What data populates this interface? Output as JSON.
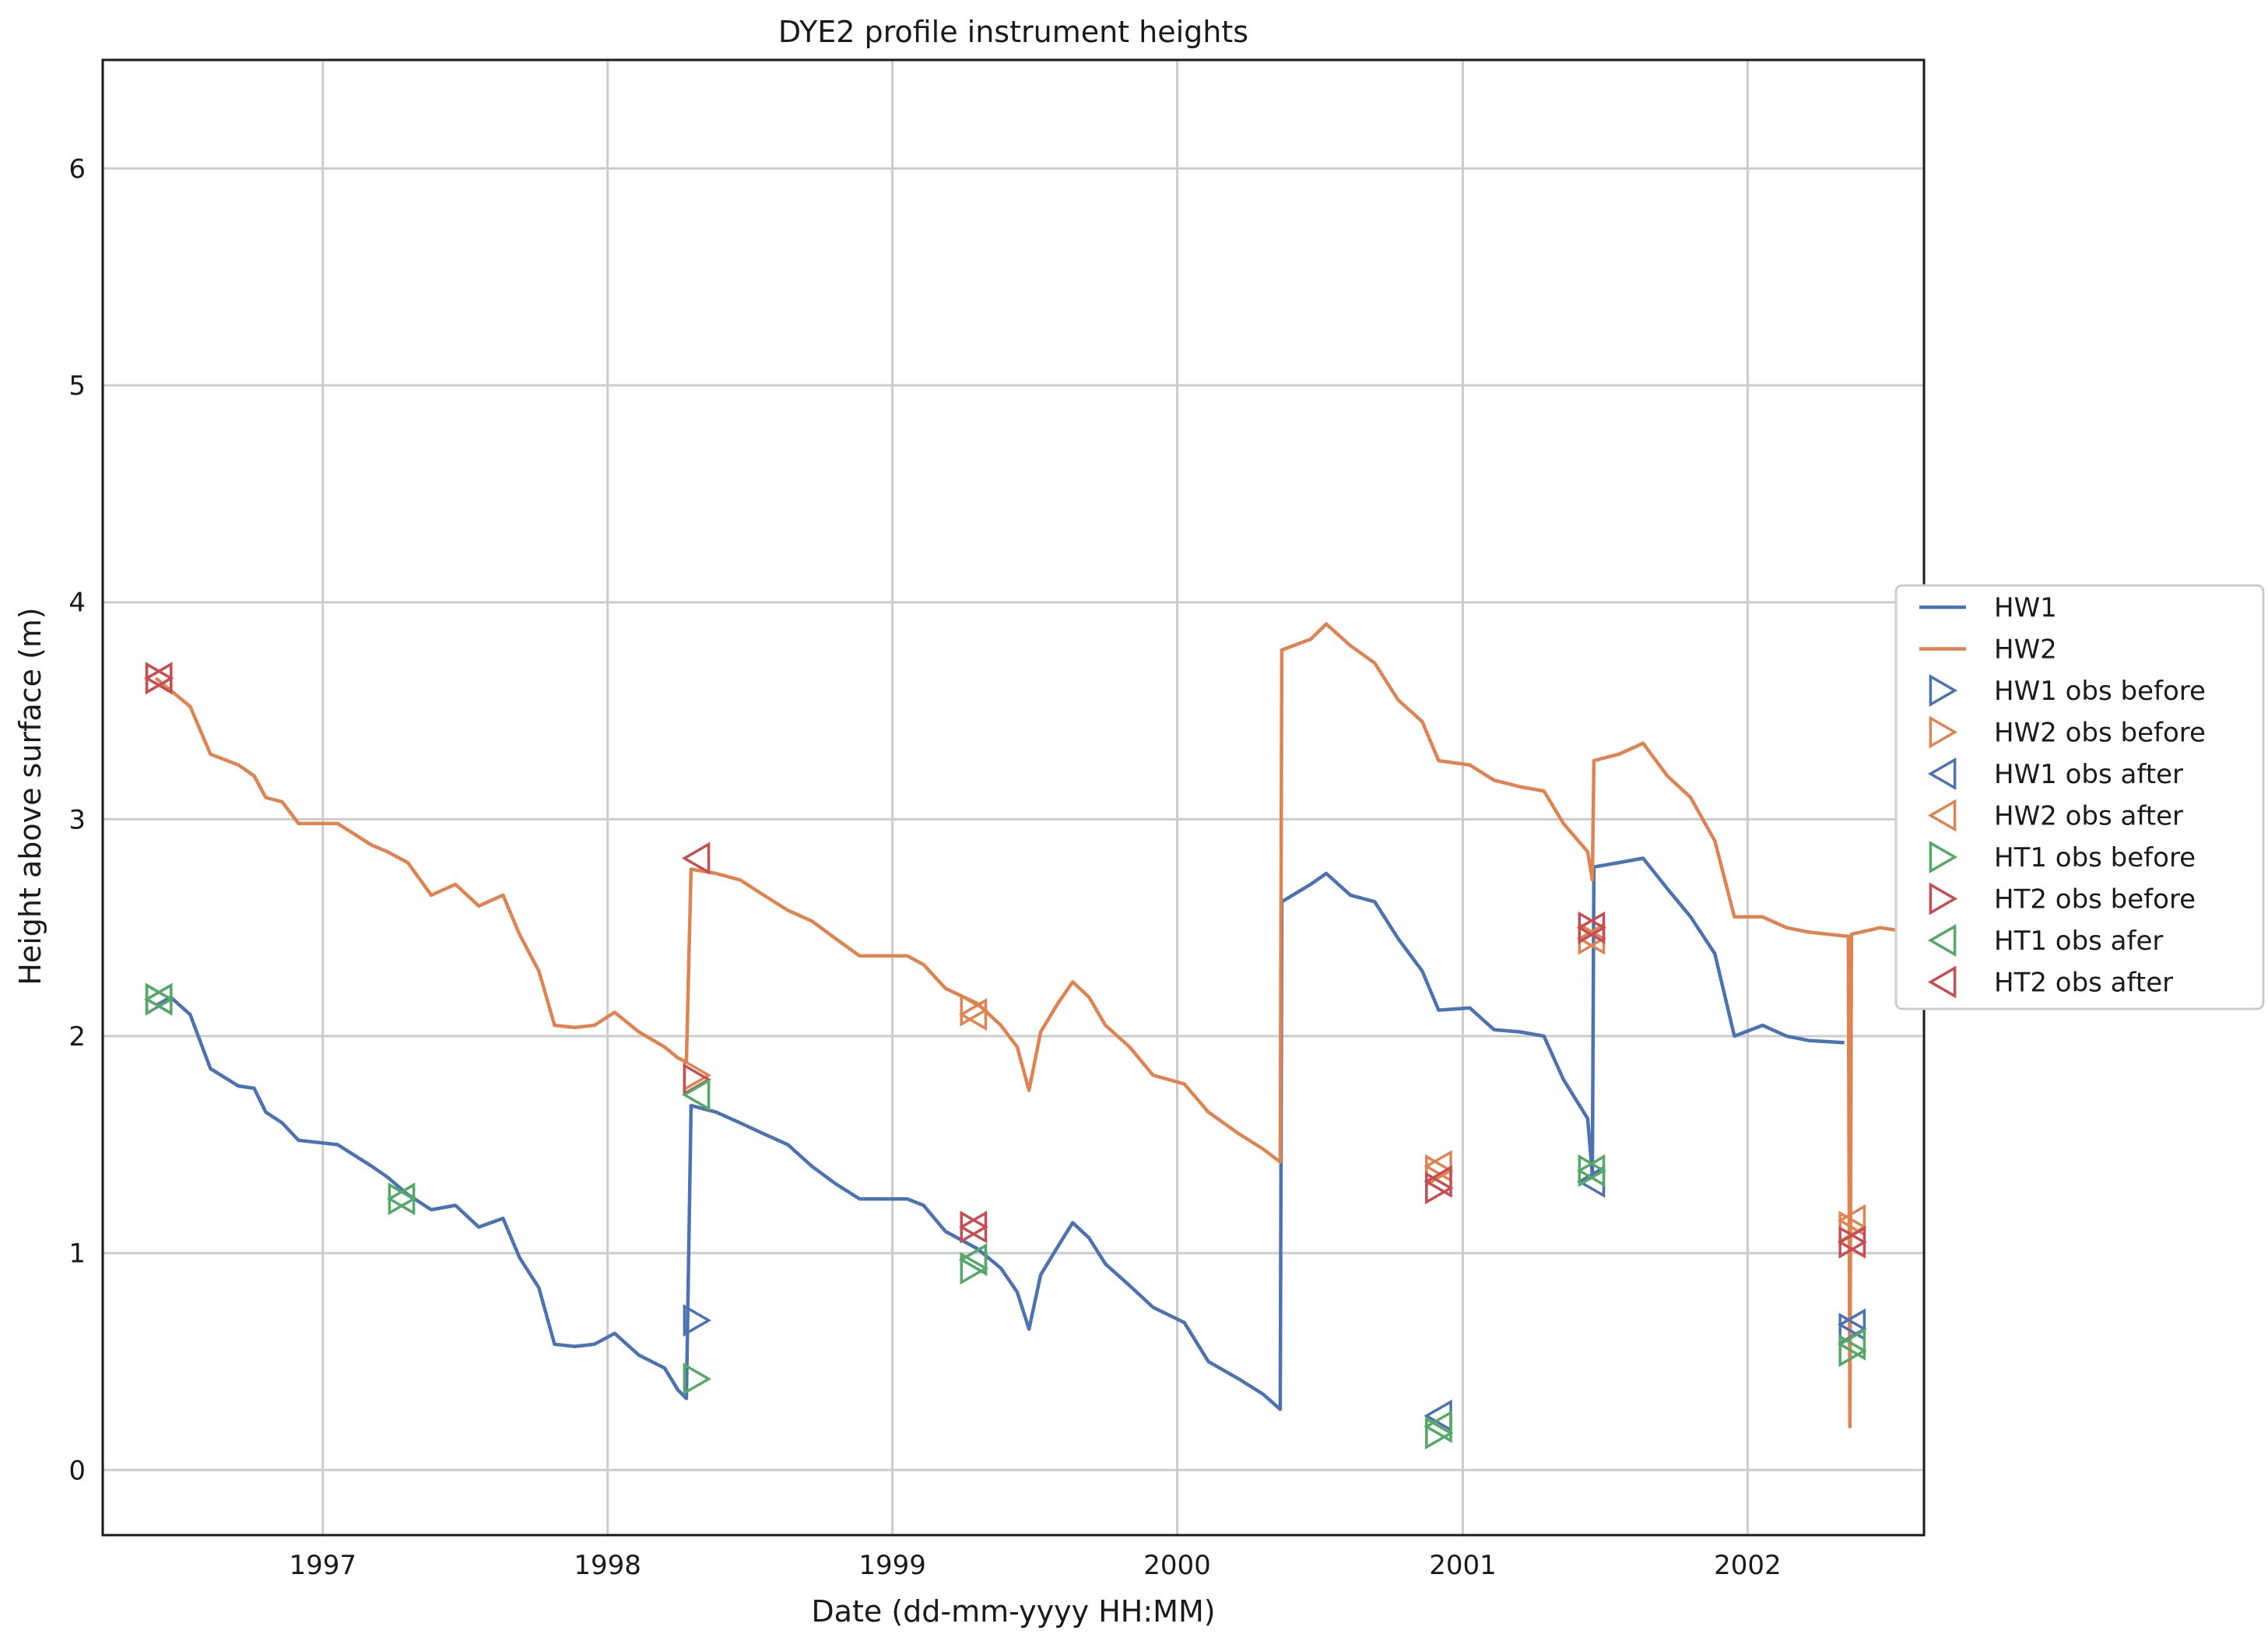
{
  "chart_data": {
    "type": "line",
    "title": "DYE2 profile instrument heights",
    "xlabel": "Date (dd-mm-yyyy HH:MM)",
    "ylabel": "Height above surface (m)",
    "x_is_date": true,
    "xlim": [
      "1996-03-25",
      "2002-08-15"
    ],
    "ylim": [
      -0.3,
      6.5
    ],
    "xticks": [
      {
        "label": "1997",
        "value": "1997-01-01"
      },
      {
        "label": "1998",
        "value": "1998-01-01"
      },
      {
        "label": "1999",
        "value": "1999-01-01"
      },
      {
        "label": "2000",
        "value": "2000-01-01"
      },
      {
        "label": "2001",
        "value": "2001-01-01"
      },
      {
        "label": "2002",
        "value": "2002-01-01"
      }
    ],
    "yticks": [
      0,
      1,
      2,
      3,
      4,
      5,
      6
    ],
    "grid": true,
    "legend_position": "right-center",
    "series": [
      {
        "name": "HW1",
        "kind": "line",
        "color": "#4c72b0",
        "points": [
          [
            "1996-06-01",
            2.14
          ],
          [
            "1996-06-20",
            2.18
          ],
          [
            "1996-07-15",
            2.1
          ],
          [
            "1996-08-10",
            1.85
          ],
          [
            "1996-09-15",
            1.77
          ],
          [
            "1996-10-05",
            1.76
          ],
          [
            "1996-10-20",
            1.65
          ],
          [
            "1996-11-10",
            1.6
          ],
          [
            "1996-12-01",
            1.52
          ],
          [
            "1997-01-20",
            1.5
          ],
          [
            "1997-03-05",
            1.4
          ],
          [
            "1997-03-25",
            1.35
          ],
          [
            "1997-04-20",
            1.27
          ],
          [
            "1997-05-20",
            1.2
          ],
          [
            "1997-06-20",
            1.22
          ],
          [
            "1997-07-20",
            1.12
          ],
          [
            "1997-08-20",
            1.16
          ],
          [
            "1997-09-10",
            0.98
          ],
          [
            "1997-10-05",
            0.84
          ],
          [
            "1997-10-25",
            0.58
          ],
          [
            "1997-11-20",
            0.57
          ],
          [
            "1997-12-15",
            0.58
          ],
          [
            "1998-01-10",
            0.63
          ],
          [
            "1998-02-10",
            0.53
          ],
          [
            "1998-03-15",
            0.47
          ],
          [
            "1998-04-01",
            0.37
          ],
          [
            "1998-04-12",
            0.33
          ],
          [
            "1998-04-18",
            1.68
          ],
          [
            "1998-05-20",
            1.65
          ],
          [
            "1998-06-20",
            1.6
          ],
          [
            "1998-07-20",
            1.55
          ],
          [
            "1998-08-20",
            1.5
          ],
          [
            "1998-09-20",
            1.4
          ],
          [
            "1998-10-20",
            1.32
          ],
          [
            "1998-11-20",
            1.25
          ],
          [
            "1999-01-20",
            1.25
          ],
          [
            "1999-02-10",
            1.22
          ],
          [
            "1999-03-10",
            1.1
          ],
          [
            "1999-04-20",
            1.02
          ],
          [
            "1999-05-20",
            0.93
          ],
          [
            "1999-06-10",
            0.82
          ],
          [
            "1999-06-25",
            0.65
          ],
          [
            "1999-07-10",
            0.9
          ],
          [
            "1999-08-01",
            1.03
          ],
          [
            "1999-08-20",
            1.14
          ],
          [
            "1999-09-10",
            1.07
          ],
          [
            "1999-10-01",
            0.95
          ],
          [
            "1999-11-01",
            0.85
          ],
          [
            "1999-12-01",
            0.75
          ],
          [
            "2000-01-10",
            0.68
          ],
          [
            "2000-02-10",
            0.5
          ],
          [
            "2000-03-20",
            0.42
          ],
          [
            "2000-04-20",
            0.35
          ],
          [
            "2000-05-12",
            0.28
          ],
          [
            "2000-05-14",
            2.62
          ],
          [
            "2000-06-20",
            2.7
          ],
          [
            "2000-07-10",
            2.75
          ],
          [
            "2000-08-10",
            2.65
          ],
          [
            "2000-09-10",
            2.62
          ],
          [
            "2000-10-10",
            2.45
          ],
          [
            "2000-11-10",
            2.3
          ],
          [
            "2000-12-01",
            2.12
          ],
          [
            "2001-01-10",
            2.13
          ],
          [
            "2001-02-10",
            2.03
          ],
          [
            "2001-03-15",
            2.02
          ],
          [
            "2001-04-15",
            2.0
          ],
          [
            "2001-05-10",
            1.8
          ],
          [
            "2001-06-10",
            1.62
          ],
          [
            "2001-06-16",
            1.36
          ],
          [
            "2001-06-18",
            2.78
          ],
          [
            "2001-07-20",
            2.8
          ],
          [
            "2001-08-20",
            2.82
          ],
          [
            "2001-09-20",
            2.68
          ],
          [
            "2001-10-20",
            2.55
          ],
          [
            "2001-11-20",
            2.38
          ],
          [
            "2001-12-15",
            2.0
          ],
          [
            "2002-01-20",
            2.05
          ],
          [
            "2002-02-20",
            2.0
          ],
          [
            "2002-03-20",
            1.98
          ],
          [
            "2002-05-05",
            1.97
          ]
        ]
      },
      {
        "name": "HW2",
        "kind": "line",
        "color": "#dd8452",
        "points": [
          [
            "1996-06-01",
            3.65
          ],
          [
            "1996-07-15",
            3.52
          ],
          [
            "1996-08-10",
            3.3
          ],
          [
            "1996-09-15",
            3.25
          ],
          [
            "1996-10-05",
            3.2
          ],
          [
            "1996-10-20",
            3.1
          ],
          [
            "1996-11-10",
            3.08
          ],
          [
            "1996-12-01",
            2.98
          ],
          [
            "1997-01-20",
            2.98
          ],
          [
            "1997-03-05",
            2.88
          ],
          [
            "1997-03-25",
            2.85
          ],
          [
            "1997-04-20",
            2.8
          ],
          [
            "1997-05-20",
            2.65
          ],
          [
            "1997-06-20",
            2.7
          ],
          [
            "1997-07-20",
            2.6
          ],
          [
            "1997-08-20",
            2.65
          ],
          [
            "1997-09-10",
            2.47
          ],
          [
            "1997-10-05",
            2.3
          ],
          [
            "1997-10-25",
            2.05
          ],
          [
            "1997-11-20",
            2.04
          ],
          [
            "1997-12-15",
            2.05
          ],
          [
            "1998-01-10",
            2.11
          ],
          [
            "1998-02-10",
            2.02
          ],
          [
            "1998-03-15",
            1.95
          ],
          [
            "1998-04-01",
            1.9
          ],
          [
            "1998-04-12",
            1.88
          ],
          [
            "1998-04-18",
            2.77
          ],
          [
            "1998-05-20",
            2.75
          ],
          [
            "1998-06-20",
            2.72
          ],
          [
            "1998-07-20",
            2.65
          ],
          [
            "1998-08-20",
            2.58
          ],
          [
            "1998-09-20",
            2.53
          ],
          [
            "1998-10-20",
            2.45
          ],
          [
            "1998-11-20",
            2.37
          ],
          [
            "1999-01-20",
            2.37
          ],
          [
            "1999-02-10",
            2.33
          ],
          [
            "1999-03-10",
            2.22
          ],
          [
            "1999-04-20",
            2.15
          ],
          [
            "1999-05-20",
            2.05
          ],
          [
            "1999-06-10",
            1.95
          ],
          [
            "1999-06-25",
            1.75
          ],
          [
            "1999-07-10",
            2.02
          ],
          [
            "1999-08-01",
            2.15
          ],
          [
            "1999-08-20",
            2.25
          ],
          [
            "1999-09-10",
            2.18
          ],
          [
            "1999-10-01",
            2.05
          ],
          [
            "1999-11-01",
            1.95
          ],
          [
            "1999-12-01",
            1.82
          ],
          [
            "2000-01-10",
            1.78
          ],
          [
            "2000-02-10",
            1.65
          ],
          [
            "2000-03-20",
            1.55
          ],
          [
            "2000-04-20",
            1.48
          ],
          [
            "2000-05-12",
            1.42
          ],
          [
            "2000-05-14",
            3.78
          ],
          [
            "2000-06-20",
            3.83
          ],
          [
            "2000-07-10",
            3.9
          ],
          [
            "2000-08-10",
            3.8
          ],
          [
            "2000-09-10",
            3.72
          ],
          [
            "2000-10-10",
            3.55
          ],
          [
            "2000-11-10",
            3.45
          ],
          [
            "2000-12-01",
            3.27
          ],
          [
            "2001-01-10",
            3.25
          ],
          [
            "2001-02-10",
            3.18
          ],
          [
            "2001-03-15",
            3.15
          ],
          [
            "2001-04-15",
            3.13
          ],
          [
            "2001-05-10",
            2.98
          ],
          [
            "2001-06-10",
            2.85
          ],
          [
            "2001-06-16",
            2.72
          ],
          [
            "2001-06-18",
            3.27
          ],
          [
            "2001-07-20",
            3.3
          ],
          [
            "2001-08-20",
            3.35
          ],
          [
            "2001-09-20",
            3.2
          ],
          [
            "2001-10-20",
            3.1
          ],
          [
            "2001-11-20",
            2.9
          ],
          [
            "2001-12-15",
            2.55
          ],
          [
            "2002-01-20",
            2.55
          ],
          [
            "2002-02-20",
            2.5
          ],
          [
            "2002-03-20",
            2.48
          ],
          [
            "2002-05-10",
            2.46
          ],
          [
            "2002-05-12",
            0.2
          ],
          [
            "2002-05-14",
            2.47
          ],
          [
            "2002-06-20",
            2.5
          ],
          [
            "2002-08-15",
            2.47
          ]
        ]
      },
      {
        "name": "HW1 obs before",
        "kind": "marker",
        "marker": "triangle-right",
        "color": "#4c72b0",
        "points": [
          [
            "1996-06-05",
            2.17
          ],
          [
            "1998-04-25",
            0.69
          ],
          [
            "2002-05-15",
            0.65
          ]
        ]
      },
      {
        "name": "HW2 obs before",
        "kind": "marker",
        "marker": "triangle-right",
        "color": "#dd8452",
        "points": [
          [
            "1996-06-05",
            3.65
          ],
          [
            "1998-04-25",
            1.82
          ],
          [
            "1999-04-15",
            2.12
          ],
          [
            "2000-12-01",
            1.38
          ],
          [
            "2001-06-15",
            2.45
          ],
          [
            "2002-05-15",
            1.12
          ]
        ]
      },
      {
        "name": "HW1 obs after",
        "kind": "marker",
        "marker": "triangle-left",
        "color": "#4c72b0",
        "points": [
          [
            "1996-06-05",
            2.17
          ],
          [
            "1999-04-15",
            0.97
          ],
          [
            "2000-12-01",
            0.25
          ],
          [
            "2001-06-15",
            1.33
          ],
          [
            "2002-05-15",
            0.67
          ]
        ]
      },
      {
        "name": "HW2 obs after",
        "kind": "marker",
        "marker": "triangle-left",
        "color": "#dd8452",
        "points": [
          [
            "1996-06-05",
            3.65
          ],
          [
            "1999-04-15",
            2.1
          ],
          [
            "2000-12-01",
            1.4
          ],
          [
            "2001-06-15",
            2.45
          ],
          [
            "2002-05-15",
            1.15
          ]
        ]
      },
      {
        "name": "HT1 obs before",
        "kind": "marker",
        "marker": "triangle-right",
        "color": "#55a868",
        "points": [
          [
            "1996-06-05",
            2.17
          ],
          [
            "1997-04-12",
            1.25
          ],
          [
            "1998-04-25",
            0.42
          ],
          [
            "1999-04-15",
            0.93
          ],
          [
            "2000-12-01",
            0.17
          ],
          [
            "2001-06-15",
            1.38
          ],
          [
            "2002-05-15",
            0.55
          ]
        ]
      },
      {
        "name": "HT2 obs before",
        "kind": "marker",
        "marker": "triangle-right",
        "color": "#c44e52",
        "points": [
          [
            "1996-06-05",
            3.65
          ],
          [
            "1998-04-25",
            1.8
          ],
          [
            "1999-04-15",
            1.12
          ],
          [
            "2000-12-01",
            1.3
          ],
          [
            "2001-06-15",
            2.5
          ],
          [
            "2002-05-15",
            1.05
          ]
        ]
      },
      {
        "name": "HT1 obs afer",
        "kind": "marker",
        "marker": "triangle-left",
        "color": "#55a868",
        "points": [
          [
            "1996-06-05",
            2.17
          ],
          [
            "1997-04-12",
            1.25
          ],
          [
            "1998-04-25",
            1.73
          ],
          [
            "1999-04-15",
            0.97
          ],
          [
            "2000-12-01",
            0.2
          ],
          [
            "2001-06-15",
            1.38
          ],
          [
            "2002-05-15",
            0.58
          ]
        ]
      },
      {
        "name": "HT2 obs after",
        "kind": "marker",
        "marker": "triangle-left",
        "color": "#c44e52",
        "points": [
          [
            "1996-06-05",
            3.65
          ],
          [
            "1998-04-25",
            2.82
          ],
          [
            "1999-04-15",
            1.12
          ],
          [
            "2000-12-01",
            1.33
          ],
          [
            "2001-06-15",
            2.5
          ],
          [
            "2002-05-15",
            1.05
          ]
        ]
      }
    ]
  }
}
